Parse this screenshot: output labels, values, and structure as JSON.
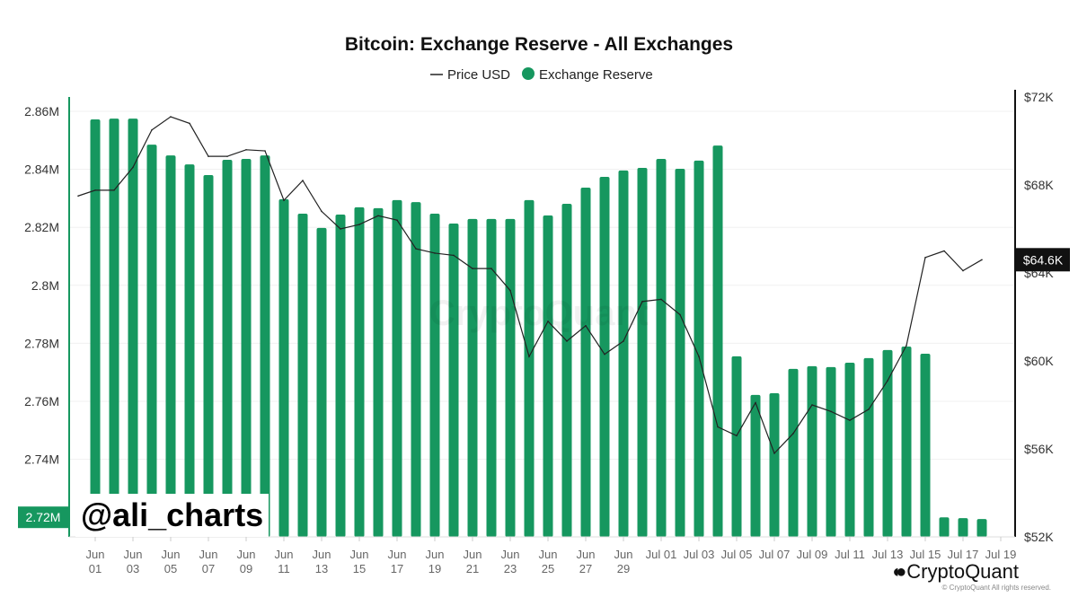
{
  "chart_data": {
    "type": "bar+line",
    "title": "Bitcoin: Exchange Reserve - All Exchanges",
    "legend": [
      "Price USD",
      "Exchange Reserve"
    ],
    "legend_placement": "top-center",
    "watermark": "CryptoQuant",
    "x_ticks": [
      "Jun 01",
      "Jun 03",
      "Jun 05",
      "Jun 07",
      "Jun 09",
      "Jun 11",
      "Jun 13",
      "Jun 15",
      "Jun 17",
      "Jun 19",
      "Jun 21",
      "Jun 23",
      "Jun 25",
      "Jun 27",
      "Jun 29",
      "Jul 01",
      "Jul 03",
      "Jul 05",
      "Jul 07",
      "Jul 09",
      "Jul 11",
      "Jul 13",
      "Jul 15",
      "Jul 17",
      "Jul 19"
    ],
    "left_axis": {
      "ticks": [
        "2.86M",
        "2.84M",
        "2.82M",
        "2.8M",
        "2.78M",
        "2.76M",
        "2.74M"
      ],
      "tick_values": [
        2.86,
        2.84,
        2.82,
        2.8,
        2.78,
        2.76,
        2.74
      ],
      "range": [
        2.7133,
        2.865
      ],
      "current_label": "2.72M"
    },
    "right_axis": {
      "ticks": [
        "$72K",
        "$68K",
        "$64K",
        "$60K",
        "$56K",
        "$52K"
      ],
      "tick_values": [
        72,
        68,
        64,
        60,
        56,
        52
      ],
      "range": [
        52,
        72
      ],
      "current_label": "$64.6K"
    },
    "series": [
      {
        "name": "Exchange Reserve",
        "type": "bar",
        "color": "#16975f",
        "start": "Jun 01",
        "unit": "M BTC",
        "values": [
          2.8572,
          2.8575,
          2.8575,
          2.8485,
          2.8448,
          2.8417,
          2.838,
          2.8433,
          2.8436,
          2.8448,
          2.8297,
          2.8247,
          2.8198,
          2.8244,
          2.8269,
          2.8266,
          2.8294,
          2.8287,
          2.8247,
          2.8213,
          2.8229,
          2.8229,
          2.8229,
          2.8294,
          2.8241,
          2.8281,
          2.8337,
          2.8374,
          2.8396,
          2.8405,
          2.8436,
          2.8402,
          2.843,
          2.8482,
          2.7755,
          2.7622,
          2.7628,
          2.7712,
          2.7721,
          2.7718,
          2.7733,
          2.7749,
          2.7777,
          2.7789,
          2.7764,
          2.72,
          2.7197,
          2.7194
        ]
      },
      {
        "name": "Price USD",
        "type": "line",
        "color": "#222222",
        "start": "May 31",
        "unit": "K USD",
        "values": [
          67.5,
          67.76,
          67.76,
          68.8,
          70.5,
          71.1,
          70.8,
          69.3,
          69.3,
          69.6,
          69.55,
          67.3,
          68.2,
          66.8,
          66.0,
          66.2,
          66.6,
          66.4,
          65.1,
          64.9,
          64.8,
          64.2,
          64.2,
          63.2,
          60.2,
          61.8,
          60.9,
          61.6,
          60.3,
          60.9,
          62.7,
          62.8,
          62.1,
          60.2,
          57.0,
          56.6,
          58.1,
          55.8,
          56.7,
          58.0,
          57.7,
          57.3,
          57.8,
          59.1,
          60.7,
          64.7,
          65.0,
          64.1,
          64.6
        ]
      }
    ]
  },
  "overlay": {
    "handle": "@ali_charts",
    "brand": "CryptoQuant",
    "copyright": "© CryptoQuant All rights reserved."
  }
}
